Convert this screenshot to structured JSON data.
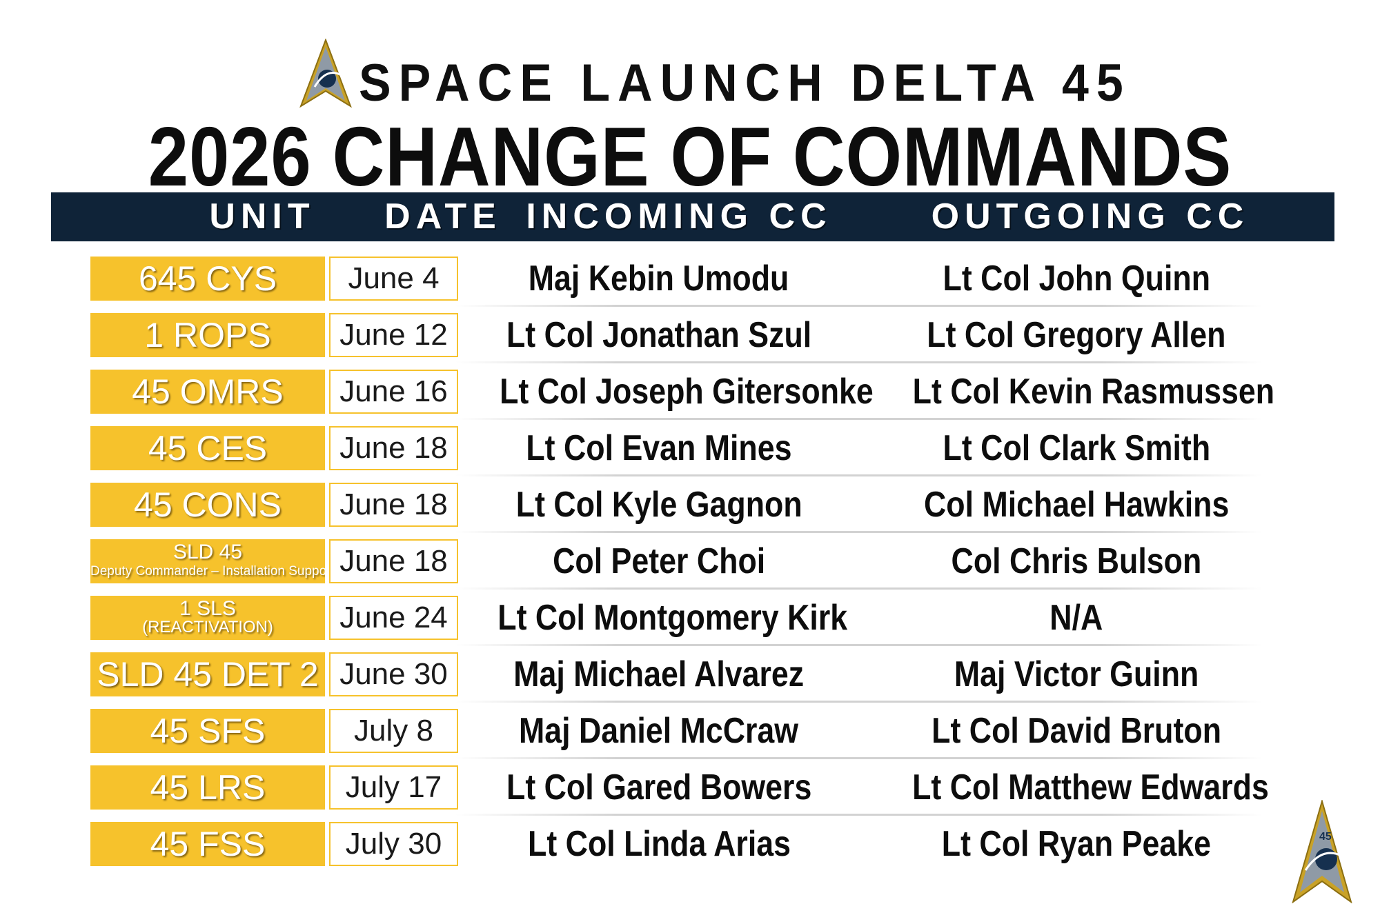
{
  "header": {
    "org_title": "SPACE LAUNCH DELTA 45",
    "main_title": "2026 CHANGE OF COMMANDS"
  },
  "columns": {
    "unit": "UNIT",
    "date": "DATE",
    "incoming": "INCOMING CC",
    "outgoing": "OUTGOING CC"
  },
  "colors": {
    "navy": "#0f2338",
    "gold": "#f6c22c"
  },
  "rows": [
    {
      "unit": "645 CYS",
      "date": "June 4",
      "incoming": "Maj Kebin Umodu",
      "outgoing": "Lt Col John Quinn"
    },
    {
      "unit": "1 ROPS",
      "date": "June 12",
      "incoming": "Lt Col Jonathan Szul",
      "outgoing": "Lt Col Gregory Allen"
    },
    {
      "unit": "45 OMRS",
      "date": "June 16",
      "incoming": "Lt Col Joseph Gitersonke",
      "outgoing": "Lt Col Kevin Rasmussen"
    },
    {
      "unit": "45 CES",
      "date": "June 18",
      "incoming": "Lt Col Evan Mines",
      "outgoing": "Lt Col Clark Smith"
    },
    {
      "unit": "45 CONS",
      "date": "June 18",
      "incoming": "Lt Col Kyle Gagnon",
      "outgoing": "Col Michael Hawkins"
    },
    {
      "unit_line1": "SLD 45",
      "unit_line2": "Deputy Commander – Installation Support",
      "date": "June 18",
      "incoming": "Col Peter Choi",
      "outgoing": "Col Chris Bulson"
    },
    {
      "unit_line1": "1 SLS",
      "unit_line2": "(REACTIVATION)",
      "date": "June 24",
      "incoming": "Lt Col Montgomery Kirk",
      "outgoing": "N/A"
    },
    {
      "unit": "SLD 45 DET 2",
      "date": "June 30",
      "incoming": "Maj Michael Alvarez",
      "outgoing": "Maj Victor Guinn"
    },
    {
      "unit": "45 SFS",
      "date": "July 8",
      "incoming": "Maj Daniel McCraw",
      "outgoing": "Lt Col David Bruton"
    },
    {
      "unit": "45 LRS",
      "date": "July 17",
      "incoming": "Lt Col Gared Bowers",
      "outgoing": "Lt Col Matthew Edwards"
    },
    {
      "unit": "45 FSS",
      "date": "July 30",
      "incoming": "Lt Col Linda Arias",
      "outgoing": "Lt Col Ryan Peake"
    }
  ],
  "logo_emblem_text": "45"
}
